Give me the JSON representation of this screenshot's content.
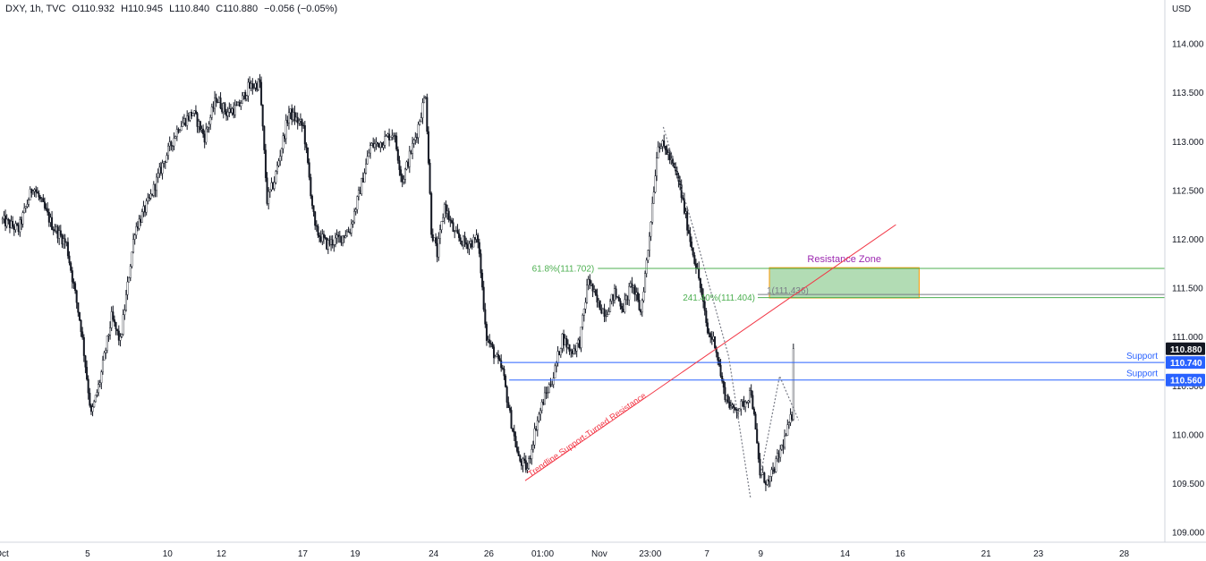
{
  "header": {
    "symbol": "DXY, 1h, TVC",
    "open": "O110.932",
    "high": "H110.945",
    "low": "L110.840",
    "close": "C110.880",
    "change": "−0.056 (−0.05%)"
  },
  "colors": {
    "resistance_zone_fill": "#a5d6a7",
    "resistance_zone_border": "#ff9800",
    "trendline": "#f23645",
    "fib_line": "#4caf50",
    "support_line": "#2962ff",
    "label_support_bg": "#2962ff",
    "label_last_bg": "#131722",
    "zone_title": "#9c27b0",
    "dotted_path": "#787b86"
  },
  "chart_data": {
    "type": "candlestick",
    "ylabel": "USD",
    "ylim": [
      108.9,
      114.45
    ],
    "x_ticks": [
      {
        "bar": 0,
        "label": "Oct"
      },
      {
        "bar": 59,
        "label": "5"
      },
      {
        "bar": 114,
        "label": "10"
      },
      {
        "bar": 151,
        "label": "12"
      },
      {
        "bar": 207,
        "label": "17"
      },
      {
        "bar": 243,
        "label": "19"
      },
      {
        "bar": 297,
        "label": "24"
      },
      {
        "bar": 335,
        "label": "26"
      },
      {
        "bar": 372,
        "label": "01:00"
      },
      {
        "bar": 411,
        "label": "Nov"
      },
      {
        "bar": 446,
        "label": "23:00"
      },
      {
        "bar": 485,
        "label": "7"
      },
      {
        "bar": 522,
        "label": "9"
      },
      {
        "bar": 580,
        "label": "14"
      },
      {
        "bar": 618,
        "label": "16"
      },
      {
        "bar": 677,
        "label": "21"
      },
      {
        "bar": 713,
        "label": "23"
      },
      {
        "bar": 772,
        "label": "28"
      }
    ],
    "y_ticks": [
      109.0,
      109.5,
      110.0,
      110.5,
      111.0,
      111.5,
      112.0,
      112.5,
      113.0,
      113.5,
      114.0
    ],
    "y_tick_labels": [
      "109.000",
      "109.500",
      "110.000",
      "110.500",
      "111.000",
      "111.500",
      "112.000",
      "112.500",
      "113.000",
      "113.500",
      "114.000"
    ],
    "bar_count_axis": 800,
    "candles_count": 545,
    "anchors": [
      [
        0,
        112.2
      ],
      [
        12,
        112.1
      ],
      [
        22,
        112.55
      ],
      [
        35,
        112.15
      ],
      [
        45,
        111.95
      ],
      [
        55,
        111.1
      ],
      [
        62,
        110.2
      ],
      [
        68,
        110.55
      ],
      [
        76,
        111.2
      ],
      [
        82,
        110.95
      ],
      [
        92,
        112.1
      ],
      [
        102,
        112.4
      ],
      [
        112,
        112.8
      ],
      [
        122,
        113.15
      ],
      [
        132,
        113.3
      ],
      [
        140,
        113.05
      ],
      [
        148,
        113.45
      ],
      [
        155,
        113.3
      ],
      [
        163,
        113.35
      ],
      [
        170,
        113.55
      ],
      [
        178,
        113.6
      ],
      [
        183,
        112.4
      ],
      [
        188,
        112.6
      ],
      [
        198,
        113.3
      ],
      [
        208,
        113.15
      ],
      [
        216,
        112.1
      ],
      [
        224,
        111.95
      ],
      [
        232,
        112.0
      ],
      [
        240,
        112.1
      ],
      [
        246,
        112.45
      ],
      [
        254,
        112.95
      ],
      [
        262,
        113.0
      ],
      [
        270,
        113.1
      ],
      [
        276,
        112.6
      ],
      [
        286,
        113.1
      ],
      [
        292,
        113.5
      ],
      [
        296,
        112.1
      ],
      [
        300,
        111.85
      ],
      [
        305,
        112.35
      ],
      [
        312,
        112.05
      ],
      [
        320,
        111.95
      ],
      [
        328,
        112.0
      ],
      [
        334,
        111.0
      ],
      [
        340,
        110.8
      ],
      [
        345,
        110.65
      ],
      [
        350,
        110.2
      ],
      [
        356,
        109.75
      ],
      [
        362,
        109.65
      ],
      [
        368,
        110.1
      ],
      [
        373,
        110.35
      ],
      [
        380,
        110.6
      ],
      [
        386,
        111.0
      ],
      [
        392,
        110.85
      ],
      [
        398,
        110.95
      ],
      [
        404,
        111.6
      ],
      [
        410,
        111.35
      ],
      [
        416,
        111.25
      ],
      [
        422,
        111.45
      ],
      [
        428,
        111.3
      ],
      [
        434,
        111.55
      ],
      [
        440,
        111.25
      ],
      [
        445,
        111.9
      ],
      [
        452,
        113.0
      ],
      [
        458,
        112.9
      ],
      [
        466,
        112.6
      ],
      [
        474,
        112.0
      ],
      [
        480,
        111.6
      ],
      [
        486,
        111.05
      ],
      [
        491,
        110.95
      ],
      [
        497,
        110.45
      ],
      [
        503,
        110.25
      ],
      [
        510,
        110.3
      ],
      [
        516,
        110.45
      ],
      [
        522,
        109.6
      ],
      [
        528,
        109.5
      ],
      [
        534,
        109.75
      ],
      [
        540,
        110.0
      ],
      [
        546,
        110.3
      ],
      [
        552,
        110.2
      ],
      [
        556,
        110.45
      ],
      [
        560,
        110.65
      ],
      [
        564,
        110.9
      ],
      [
        568,
        110.88
      ]
    ]
  },
  "annotations": {
    "resistance_zone_label": "Resistance Zone",
    "resistance_zone": {
      "bar_start": 528,
      "bar_end": 631,
      "top": 111.71,
      "bottom": 111.4
    },
    "fib_618_label": "61.8%(111.702)",
    "fib_618": {
      "value": 111.702,
      "bar_start": 410
    },
    "fib_2414_label": "241.40%(111.404)",
    "fib_2414": {
      "value": 111.404,
      "bar_start": 520
    },
    "fib_1_label": "1(111.436)",
    "fib_1": {
      "value": 111.436,
      "bar_start": 520
    },
    "trendline_label": "Trendline Support-Turned Resistance",
    "trendline": {
      "bar_start": 360,
      "value_start": 109.53,
      "bar_end": 615,
      "value_end": 112.15
    },
    "supports": [
      {
        "label": "Support",
        "value_text": "110.740",
        "value": 110.74,
        "bar_start": 343
      },
      {
        "label": "Support",
        "value_text": "110.560",
        "value": 110.56,
        "bar_start": 349
      }
    ],
    "last_price_text": "110.880",
    "last_price": 110.88,
    "dotted_paths": [
      [
        [
          455,
          113.15
        ],
        [
          476,
          112.1
        ],
        [
          500,
          110.8
        ],
        [
          515,
          109.35
        ]
      ],
      [
        [
          522,
          109.6
        ],
        [
          535,
          110.6
        ],
        [
          548,
          110.15
        ]
      ]
    ]
  }
}
